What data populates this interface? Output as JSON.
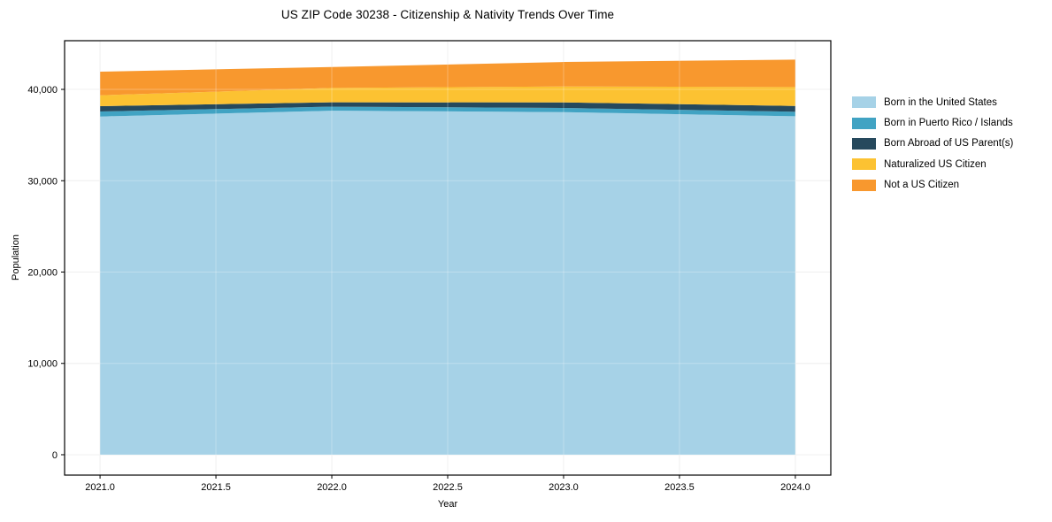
{
  "chart_data": {
    "type": "area",
    "stacked": true,
    "title": "US ZIP Code 30238 - Citizenship & Nativity Trends Over Time",
    "xlabel": "Year",
    "ylabel": "Population",
    "x": [
      2021,
      2022,
      2023,
      2024
    ],
    "series": [
      {
        "name": "Born in the United States",
        "color": "#a6d2e7",
        "values": [
          37030,
          37670,
          37510,
          37060
        ]
      },
      {
        "name": "Born in Puerto Rico / Islands",
        "color": "#41a3c3",
        "values": [
          550,
          440,
          460,
          490
        ]
      },
      {
        "name": "Born Abroad of US Parent(s)",
        "color": "#26495d",
        "values": [
          580,
          480,
          600,
          640
        ]
      },
      {
        "name": "Naturalized US Citizen",
        "color": "#fcc232",
        "values": [
          1190,
          1570,
          1750,
          2070
        ]
      },
      {
        "name": "Not a US Citizen",
        "color": "#f8982e",
        "values": [
          2590,
          2290,
          2680,
          3000
        ]
      }
    ],
    "totals": [
      41940,
      42450,
      43000,
      43260
    ],
    "x_ticks": {
      "values": [
        2021,
        2021.5,
        2022,
        2022.5,
        2023,
        2023.5,
        2024
      ],
      "labels": [
        "2021.0",
        "2021.5",
        "2022.0",
        "2022.5",
        "2023.0",
        "2023.5",
        "2024.0"
      ]
    },
    "y_ticks": {
      "values": [
        0,
        10000,
        20000,
        30000,
        40000
      ],
      "labels": [
        "0",
        "10,000",
        "20,000",
        "30,000",
        "40,000"
      ]
    },
    "xlim": [
      2020.847,
      2024.153
    ],
    "ylim": [
      -2230,
      45330
    ],
    "grid": true,
    "legend_position": "right",
    "colors": {
      "grid": "#ebebeb",
      "axis": "#000000",
      "background": "#ffffff"
    }
  }
}
